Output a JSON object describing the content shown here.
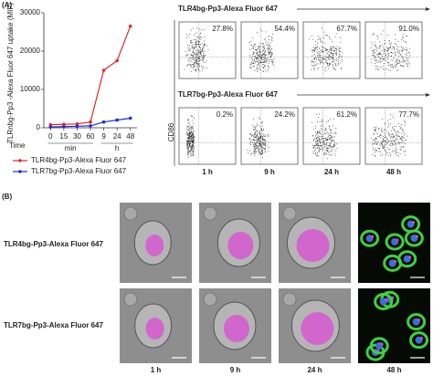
{
  "panel_a_label": "(A)",
  "chart_data": {
    "type": "line",
    "y_label": "TLRnbg-Pp3 -Alexa Fluor 647 uptake (MIF)",
    "x_label": "Time",
    "x_groups": [
      "min",
      "h"
    ],
    "categories": [
      "0",
      "15",
      "30",
      "60",
      "9",
      "24",
      "48"
    ],
    "series": [
      {
        "name": "TLR4bg-Pp3-Alexa Fluor 647",
        "color": "#e8262b",
        "values": [
          800,
          900,
          1000,
          1500,
          15000,
          17500,
          26500
        ]
      },
      {
        "name": "TLR7bg-Pp3-Alexa Fluor 647",
        "color": "#1f2fd0",
        "values": [
          200,
          300,
          400,
          500,
          1500,
          2000,
          2500
        ]
      }
    ],
    "ylim": [
      0,
      30000
    ],
    "yticks": [
      0,
      10000,
      20000,
      30000
    ]
  },
  "flow": {
    "y_label": "CD86",
    "rows": [
      {
        "title": "TLR4bg-Pp3-Alexa Fluor 647",
        "percents": [
          "27.8%",
          "54.4%",
          "67.7%",
          "91.0%"
        ]
      },
      {
        "title": "TLR7bg-Pp3-Alexa Fluor 647",
        "percents": [
          "0.2%",
          "24.2%",
          "61.2%",
          "77.7%"
        ]
      }
    ],
    "times": [
      "1 h",
      "9 h",
      "24 h",
      "48 h"
    ]
  },
  "panel_b": {
    "label": "(B)",
    "rows": [
      "TLR4bg-Pp3-Alexa Fluor 647",
      "TLR7bg-Pp3-Alexa Fluor 647"
    ],
    "times": [
      "1 h",
      "9 h",
      "24 h",
      "48 h"
    ]
  }
}
